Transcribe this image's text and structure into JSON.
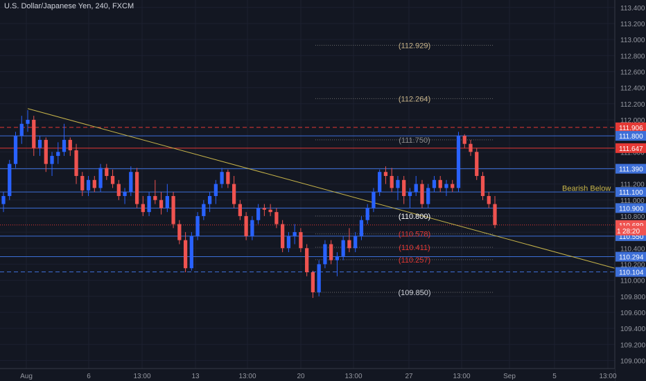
{
  "header": {
    "title": "U.S. Dollar/Japanese Yen, 240, FXCM"
  },
  "colors": {
    "background": "#131722",
    "bull": "#2962ff",
    "bear": "#ef5350",
    "blue_line": "#3d6fd8",
    "red_line": "#e53935",
    "trendline": "#c9b64a",
    "text": "#9598a1"
  },
  "y_axis": {
    "min": 108.9,
    "max": 113.45,
    "ticks": [
      "109.000",
      "109.200",
      "109.400",
      "109.600",
      "109.800",
      "110.000",
      "110.200",
      "110.400",
      "110.600",
      "110.800",
      "111.000",
      "111.200",
      "111.400",
      "111.600",
      "111.800",
      "112.000",
      "112.200",
      "112.400",
      "112.600",
      "112.800",
      "113.000",
      "113.200",
      "113.400"
    ]
  },
  "x_axis": {
    "labels": [
      "Aug",
      "6",
      "13:00",
      "13",
      "13:00",
      "20",
      "13:00",
      "27",
      "13:00",
      "Sep",
      "5",
      "13:00"
    ]
  },
  "horizontal_lines": [
    {
      "value": 111.906,
      "label": "111.906",
      "style": "red-dashed"
    },
    {
      "value": 111.8,
      "label": "111.800",
      "style": "blue"
    },
    {
      "value": 111.647,
      "label": "111.647",
      "style": "red"
    },
    {
      "value": 111.39,
      "label": "111.390",
      "style": "blue"
    },
    {
      "value": 111.1,
      "label": "111.100",
      "style": "blue"
    },
    {
      "value": 110.9,
      "label": "110.900",
      "style": "blue"
    },
    {
      "value": 110.689,
      "label": "110.689",
      "style": "price"
    },
    {
      "value": 110.55,
      "label": "110.550",
      "style": "blue"
    },
    {
      "value": 110.294,
      "label": "110.294",
      "style": "blue"
    },
    {
      "value": 110.104,
      "label": "110.104",
      "style": "blue-dashed"
    }
  ],
  "countdown_label": "28:20",
  "countdown_partial": "1",
  "fib_levels": [
    {
      "value": 112.929,
      "label": "(112.929)",
      "color": "#c8b48a"
    },
    {
      "value": 112.264,
      "label": "(112.264)",
      "color": "#c8b48a"
    },
    {
      "value": 111.75,
      "label": "(111.750)",
      "color": "#8f8f8f"
    },
    {
      "value": 110.8,
      "label": "(110.800)",
      "color": "#ffffff"
    },
    {
      "value": 110.578,
      "label": "(110.578)",
      "color": "#e53935"
    },
    {
      "value": 110.411,
      "label": "(110.411)",
      "color": "#e53935"
    },
    {
      "value": 110.257,
      "label": "(110.257)",
      "color": "#e53935"
    },
    {
      "value": 109.85,
      "label": "(109.850)",
      "color": "#d1d4dc"
    }
  ],
  "annotation": {
    "text": "Bearish Below",
    "color": "#c9b64a"
  },
  "trendline": {
    "start_value": 112.14,
    "end_value": 110.15
  },
  "candles": [
    [
      110.95,
      111.1,
      110.85,
      111.05
    ],
    [
      111.05,
      111.5,
      111.0,
      111.45
    ],
    [
      111.45,
      111.85,
      111.4,
      111.8
    ],
    [
      111.8,
      112.05,
      111.7,
      111.95
    ],
    [
      111.95,
      112.12,
      111.85,
      112.0
    ],
    [
      112.0,
      112.05,
      111.55,
      111.65
    ],
    [
      111.65,
      111.8,
      111.55,
      111.75
    ],
    [
      111.75,
      111.78,
      111.35,
      111.45
    ],
    [
      111.45,
      111.6,
      111.3,
      111.55
    ],
    [
      111.55,
      111.72,
      111.45,
      111.6
    ],
    [
      111.6,
      111.95,
      111.55,
      111.75
    ],
    [
      111.75,
      111.78,
      111.55,
      111.62
    ],
    [
      111.62,
      111.7,
      111.2,
      111.3
    ],
    [
      111.3,
      111.35,
      111.05,
      111.12
    ],
    [
      111.12,
      111.3,
      111.05,
      111.25
    ],
    [
      111.25,
      111.3,
      111.1,
      111.15
    ],
    [
      111.15,
      111.45,
      111.1,
      111.4
    ],
    [
      111.4,
      111.45,
      111.25,
      111.3
    ],
    [
      111.3,
      111.38,
      111.15,
      111.2
    ],
    [
      111.2,
      111.25,
      111.0,
      111.05
    ],
    [
      111.05,
      111.15,
      110.95,
      111.1
    ],
    [
      111.1,
      111.42,
      111.05,
      111.35
    ],
    [
      111.35,
      111.4,
      110.9,
      110.95
    ],
    [
      110.95,
      111.05,
      110.8,
      110.85
    ],
    [
      110.85,
      111.1,
      110.8,
      111.05
    ],
    [
      111.05,
      111.25,
      110.95,
      111.0
    ],
    [
      111.0,
      111.1,
      110.82,
      110.9
    ],
    [
      110.9,
      111.2,
      110.85,
      111.05
    ],
    [
      111.05,
      111.1,
      110.65,
      110.7
    ],
    [
      110.7,
      110.75,
      110.45,
      110.5
    ],
    [
      110.5,
      110.6,
      110.1,
      110.15
    ],
    [
      110.15,
      110.6,
      110.12,
      110.55
    ],
    [
      110.55,
      110.85,
      110.5,
      110.8
    ],
    [
      110.8,
      111.0,
      110.75,
      110.95
    ],
    [
      110.95,
      111.1,
      110.85,
      111.05
    ],
    [
      111.05,
      111.25,
      110.95,
      111.2
    ],
    [
      111.2,
      111.4,
      111.15,
      111.35
    ],
    [
      111.35,
      111.38,
      111.15,
      111.2
    ],
    [
      111.2,
      111.3,
      110.9,
      110.95
    ],
    [
      110.95,
      111.0,
      110.75,
      110.8
    ],
    [
      110.8,
      110.85,
      110.5,
      110.55
    ],
    [
      110.55,
      110.8,
      110.5,
      110.75
    ],
    [
      110.75,
      110.95,
      110.7,
      110.9
    ],
    [
      110.9,
      110.95,
      110.8,
      110.88
    ],
    [
      110.88,
      110.95,
      110.8,
      110.85
    ],
    [
      110.85,
      110.9,
      110.65,
      110.7
    ],
    [
      110.7,
      110.75,
      110.35,
      110.4
    ],
    [
      110.4,
      110.6,
      110.35,
      110.55
    ],
    [
      110.55,
      110.7,
      110.45,
      110.6
    ],
    [
      110.6,
      110.65,
      110.35,
      110.4
    ],
    [
      110.4,
      110.45,
      110.05,
      110.1
    ],
    [
      110.1,
      110.12,
      109.78,
      109.85
    ],
    [
      109.85,
      110.25,
      109.8,
      110.2
    ],
    [
      110.2,
      110.5,
      110.15,
      110.45
    ],
    [
      110.45,
      110.5,
      110.2,
      110.25
    ],
    [
      110.25,
      110.35,
      110.05,
      110.3
    ],
    [
      110.3,
      110.55,
      110.25,
      110.5
    ],
    [
      110.5,
      110.65,
      110.35,
      110.4
    ],
    [
      110.4,
      110.6,
      110.35,
      110.55
    ],
    [
      110.55,
      110.8,
      110.5,
      110.75
    ],
    [
      110.75,
      110.95,
      110.7,
      110.9
    ],
    [
      110.9,
      111.15,
      110.85,
      111.1
    ],
    [
      111.1,
      111.38,
      111.05,
      111.35
    ],
    [
      111.35,
      111.42,
      111.2,
      111.3
    ],
    [
      111.3,
      111.4,
      111.1,
      111.15
    ],
    [
      111.15,
      111.3,
      111.0,
      111.25
    ],
    [
      111.25,
      111.3,
      110.95,
      111.05
    ],
    [
      111.05,
      111.15,
      110.9,
      111.1
    ],
    [
      111.1,
      111.3,
      111.05,
      111.2
    ],
    [
      111.2,
      111.25,
      110.9,
      110.95
    ],
    [
      110.95,
      111.2,
      110.9,
      111.15
    ],
    [
      111.15,
      111.3,
      111.1,
      111.25
    ],
    [
      111.25,
      111.3,
      111.1,
      111.15
    ],
    [
      111.15,
      111.25,
      111.05,
      111.2
    ],
    [
      111.2,
      111.25,
      111.1,
      111.15
    ],
    [
      111.15,
      111.85,
      111.1,
      111.8
    ],
    [
      111.8,
      111.82,
      111.65,
      111.7
    ],
    [
      111.7,
      111.75,
      111.55,
      111.6
    ],
    [
      111.6,
      111.65,
      111.25,
      111.3
    ],
    [
      111.3,
      111.35,
      111.0,
      111.05
    ],
    [
      111.05,
      111.1,
      110.9,
      110.95
    ],
    [
      110.95,
      111.05,
      110.65,
      110.69
    ]
  ]
}
